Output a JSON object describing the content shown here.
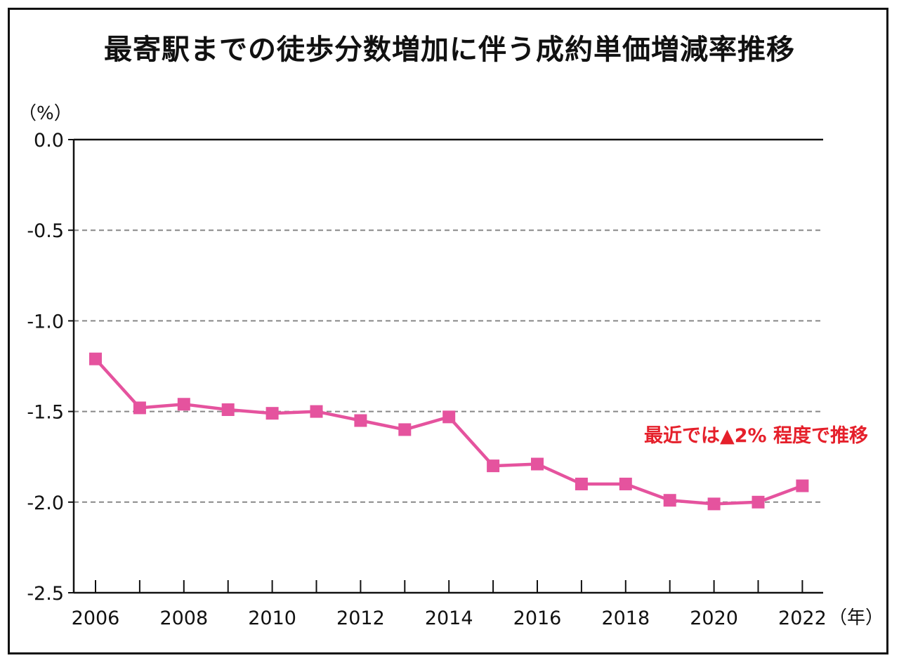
{
  "colors": {
    "series": "#e5539e",
    "annotation": "#e5202b",
    "grid": "#888888",
    "axis": "#111111"
  },
  "chart_data": {
    "type": "line",
    "title": "最寄駅までの徒歩分数増加に伴う成約単価増減率推移",
    "ylabel": "（%）",
    "xlabel": "（年）",
    "ylim": [
      -2.5,
      0.0
    ],
    "yticks": [
      0.0,
      -0.5,
      -1.0,
      -1.5,
      -2.0,
      -2.5
    ],
    "ytick_labels": [
      "0.0",
      "-0.5",
      "-1.0",
      "-1.5",
      "-2.0",
      "-2.5"
    ],
    "x": [
      2006,
      2007,
      2008,
      2009,
      2010,
      2011,
      2012,
      2013,
      2014,
      2015,
      2016,
      2017,
      2018,
      2019,
      2020,
      2021,
      2022
    ],
    "xtick_labels": [
      "2006",
      "2008",
      "2010",
      "2012",
      "2014",
      "2016",
      "2018",
      "2020",
      "2022"
    ],
    "grid": "horizontal dashed",
    "series": [
      {
        "values": [
          -1.21,
          -1.48,
          -1.46,
          -1.49,
          -1.51,
          -1.5,
          -1.55,
          -1.6,
          -1.53,
          -1.8,
          -1.79,
          -1.9,
          -1.9,
          -1.99,
          -2.01,
          -2.0,
          -1.91
        ],
        "marker": "square"
      }
    ],
    "annotations": [
      {
        "text": "最近では▲2% 程度で推移"
      }
    ]
  }
}
